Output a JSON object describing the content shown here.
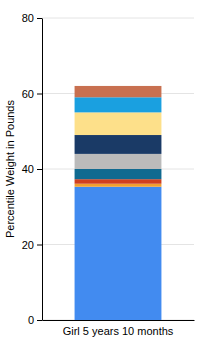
{
  "chart_data": {
    "type": "bar",
    "stacked": true,
    "categories": [
      "Girl 5 years 10 months"
    ],
    "series": [
      {
        "color": "#428bf0",
        "values": [
          35.3
        ]
      },
      {
        "color": "#f0a030",
        "values": [
          0.8
        ]
      },
      {
        "color": "#d04020",
        "values": [
          1.2
        ]
      },
      {
        "color": "#106a90",
        "values": [
          2.7
        ]
      },
      {
        "color": "#bbbbbb",
        "values": [
          4
        ]
      },
      {
        "color": "#1a3a66",
        "values": [
          5
        ]
      },
      {
        "color": "#fde08a",
        "values": [
          6
        ]
      },
      {
        "color": "#1aa0e0",
        "values": [
          4
        ]
      },
      {
        "color": "#c87050",
        "values": [
          3
        ]
      }
    ],
    "y_label": "Percentile Weight in Pounds",
    "ylim": [
      0,
      80
    ],
    "yticks": [
      0,
      20,
      40,
      60,
      80
    ],
    "grid": true
  }
}
